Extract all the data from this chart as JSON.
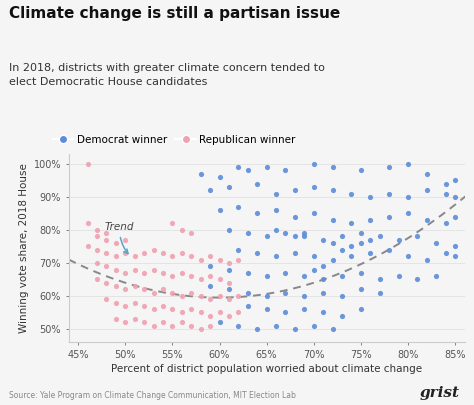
{
  "title": "Climate change is still a partisan issue",
  "subtitle": "In 2018, districts with greater climate concern tended to\nelect Democratic House candidates",
  "xlabel": "Percent of district population worried about climate change",
  "ylabel": "Winning vote share, 2018 House",
  "source": "Source: Yale Program on Climate Change Communication, MIT Election Lab",
  "logo": "grist",
  "xlim": [
    0.44,
    0.86
  ],
  "ylim": [
    0.46,
    1.03
  ],
  "xticks": [
    0.45,
    0.5,
    0.55,
    0.6,
    0.65,
    0.7,
    0.75,
    0.8,
    0.85
  ],
  "yticks": [
    0.5,
    0.6,
    0.7,
    0.8,
    0.9,
    1.0
  ],
  "dem_color": "#5b8dd9",
  "rep_color": "#f0a0b0",
  "trend_color": "#888888",
  "background_color": "#f5f5f5",
  "trend_label": "Trend",
  "dem_points": [
    [
      0.58,
      0.97
    ],
    [
      0.6,
      0.96
    ],
    [
      0.62,
      0.99
    ],
    [
      0.63,
      0.98
    ],
    [
      0.65,
      0.99
    ],
    [
      0.67,
      0.98
    ],
    [
      0.7,
      1.0
    ],
    [
      0.72,
      0.99
    ],
    [
      0.75,
      0.98
    ],
    [
      0.78,
      0.99
    ],
    [
      0.8,
      1.0
    ],
    [
      0.82,
      0.97
    ],
    [
      0.84,
      0.94
    ],
    [
      0.85,
      0.95
    ],
    [
      0.59,
      0.92
    ],
    [
      0.61,
      0.93
    ],
    [
      0.64,
      0.94
    ],
    [
      0.66,
      0.91
    ],
    [
      0.68,
      0.92
    ],
    [
      0.7,
      0.93
    ],
    [
      0.72,
      0.92
    ],
    [
      0.74,
      0.91
    ],
    [
      0.76,
      0.9
    ],
    [
      0.78,
      0.91
    ],
    [
      0.8,
      0.9
    ],
    [
      0.82,
      0.92
    ],
    [
      0.84,
      0.91
    ],
    [
      0.85,
      0.9
    ],
    [
      0.6,
      0.86
    ],
    [
      0.62,
      0.87
    ],
    [
      0.64,
      0.85
    ],
    [
      0.66,
      0.86
    ],
    [
      0.68,
      0.84
    ],
    [
      0.7,
      0.85
    ],
    [
      0.72,
      0.83
    ],
    [
      0.74,
      0.82
    ],
    [
      0.76,
      0.83
    ],
    [
      0.78,
      0.84
    ],
    [
      0.8,
      0.85
    ],
    [
      0.82,
      0.83
    ],
    [
      0.84,
      0.82
    ],
    [
      0.85,
      0.84
    ],
    [
      0.61,
      0.8
    ],
    [
      0.63,
      0.79
    ],
    [
      0.65,
      0.78
    ],
    [
      0.67,
      0.79
    ],
    [
      0.69,
      0.78
    ],
    [
      0.71,
      0.77
    ],
    [
      0.73,
      0.78
    ],
    [
      0.75,
      0.79
    ],
    [
      0.77,
      0.78
    ],
    [
      0.79,
      0.77
    ],
    [
      0.81,
      0.78
    ],
    [
      0.83,
      0.76
    ],
    [
      0.85,
      0.75
    ],
    [
      0.62,
      0.74
    ],
    [
      0.64,
      0.73
    ],
    [
      0.66,
      0.72
    ],
    [
      0.68,
      0.73
    ],
    [
      0.7,
      0.72
    ],
    [
      0.72,
      0.71
    ],
    [
      0.74,
      0.72
    ],
    [
      0.76,
      0.73
    ],
    [
      0.78,
      0.74
    ],
    [
      0.8,
      0.72
    ],
    [
      0.82,
      0.71
    ],
    [
      0.84,
      0.73
    ],
    [
      0.85,
      0.72
    ],
    [
      0.59,
      0.69
    ],
    [
      0.61,
      0.68
    ],
    [
      0.63,
      0.67
    ],
    [
      0.65,
      0.66
    ],
    [
      0.67,
      0.67
    ],
    [
      0.69,
      0.66
    ],
    [
      0.71,
      0.65
    ],
    [
      0.73,
      0.66
    ],
    [
      0.75,
      0.67
    ],
    [
      0.77,
      0.65
    ],
    [
      0.79,
      0.66
    ],
    [
      0.81,
      0.65
    ],
    [
      0.83,
      0.66
    ],
    [
      0.59,
      0.63
    ],
    [
      0.61,
      0.62
    ],
    [
      0.63,
      0.61
    ],
    [
      0.65,
      0.6
    ],
    [
      0.67,
      0.61
    ],
    [
      0.69,
      0.6
    ],
    [
      0.71,
      0.61
    ],
    [
      0.73,
      0.6
    ],
    [
      0.75,
      0.62
    ],
    [
      0.77,
      0.61
    ],
    [
      0.63,
      0.57
    ],
    [
      0.65,
      0.56
    ],
    [
      0.67,
      0.55
    ],
    [
      0.69,
      0.56
    ],
    [
      0.71,
      0.55
    ],
    [
      0.73,
      0.54
    ],
    [
      0.75,
      0.56
    ],
    [
      0.6,
      0.52
    ],
    [
      0.62,
      0.51
    ],
    [
      0.64,
      0.5
    ],
    [
      0.66,
      0.51
    ],
    [
      0.68,
      0.5
    ],
    [
      0.7,
      0.51
    ],
    [
      0.72,
      0.5
    ],
    [
      0.75,
      0.76
    ],
    [
      0.76,
      0.77
    ],
    [
      0.74,
      0.75
    ],
    [
      0.73,
      0.74
    ],
    [
      0.72,
      0.76
    ],
    [
      0.68,
      0.78
    ],
    [
      0.69,
      0.79
    ],
    [
      0.66,
      0.8
    ],
    [
      0.7,
      0.68
    ],
    [
      0.71,
      0.69
    ]
  ],
  "rep_points": [
    [
      0.46,
      0.82
    ],
    [
      0.47,
      0.78
    ],
    [
      0.48,
      0.77
    ],
    [
      0.49,
      0.76
    ],
    [
      0.5,
      0.77
    ],
    [
      0.46,
      0.75
    ],
    [
      0.47,
      0.74
    ],
    [
      0.48,
      0.73
    ],
    [
      0.49,
      0.72
    ],
    [
      0.5,
      0.73
    ],
    [
      0.51,
      0.72
    ],
    [
      0.52,
      0.73
    ],
    [
      0.53,
      0.74
    ],
    [
      0.54,
      0.73
    ],
    [
      0.55,
      0.72
    ],
    [
      0.56,
      0.73
    ],
    [
      0.57,
      0.72
    ],
    [
      0.58,
      0.71
    ],
    [
      0.59,
      0.72
    ],
    [
      0.6,
      0.71
    ],
    [
      0.61,
      0.7
    ],
    [
      0.62,
      0.71
    ],
    [
      0.47,
      0.7
    ],
    [
      0.48,
      0.69
    ],
    [
      0.49,
      0.68
    ],
    [
      0.5,
      0.67
    ],
    [
      0.51,
      0.68
    ],
    [
      0.52,
      0.67
    ],
    [
      0.53,
      0.68
    ],
    [
      0.54,
      0.67
    ],
    [
      0.55,
      0.66
    ],
    [
      0.56,
      0.67
    ],
    [
      0.57,
      0.66
    ],
    [
      0.58,
      0.65
    ],
    [
      0.59,
      0.66
    ],
    [
      0.6,
      0.65
    ],
    [
      0.61,
      0.64
    ],
    [
      0.47,
      0.65
    ],
    [
      0.48,
      0.64
    ],
    [
      0.49,
      0.63
    ],
    [
      0.5,
      0.62
    ],
    [
      0.51,
      0.63
    ],
    [
      0.52,
      0.62
    ],
    [
      0.53,
      0.61
    ],
    [
      0.54,
      0.62
    ],
    [
      0.55,
      0.61
    ],
    [
      0.56,
      0.6
    ],
    [
      0.57,
      0.61
    ],
    [
      0.58,
      0.6
    ],
    [
      0.59,
      0.59
    ],
    [
      0.6,
      0.6
    ],
    [
      0.61,
      0.59
    ],
    [
      0.62,
      0.6
    ],
    [
      0.48,
      0.59
    ],
    [
      0.49,
      0.58
    ],
    [
      0.5,
      0.57
    ],
    [
      0.51,
      0.58
    ],
    [
      0.52,
      0.57
    ],
    [
      0.53,
      0.56
    ],
    [
      0.54,
      0.57
    ],
    [
      0.55,
      0.56
    ],
    [
      0.56,
      0.55
    ],
    [
      0.57,
      0.56
    ],
    [
      0.58,
      0.55
    ],
    [
      0.59,
      0.54
    ],
    [
      0.6,
      0.55
    ],
    [
      0.61,
      0.54
    ],
    [
      0.62,
      0.55
    ],
    [
      0.49,
      0.53
    ],
    [
      0.5,
      0.52
    ],
    [
      0.51,
      0.53
    ],
    [
      0.52,
      0.52
    ],
    [
      0.53,
      0.51
    ],
    [
      0.54,
      0.52
    ],
    [
      0.55,
      0.51
    ],
    [
      0.56,
      0.52
    ],
    [
      0.57,
      0.51
    ],
    [
      0.58,
      0.5
    ],
    [
      0.59,
      0.51
    ],
    [
      0.46,
      1.0
    ],
    [
      0.55,
      0.82
    ],
    [
      0.56,
      0.8
    ],
    [
      0.57,
      0.79
    ],
    [
      0.47,
      0.8
    ],
    [
      0.48,
      0.79
    ]
  ],
  "trend_coeffs": [
    4.5,
    -5.4,
    2.215
  ]
}
